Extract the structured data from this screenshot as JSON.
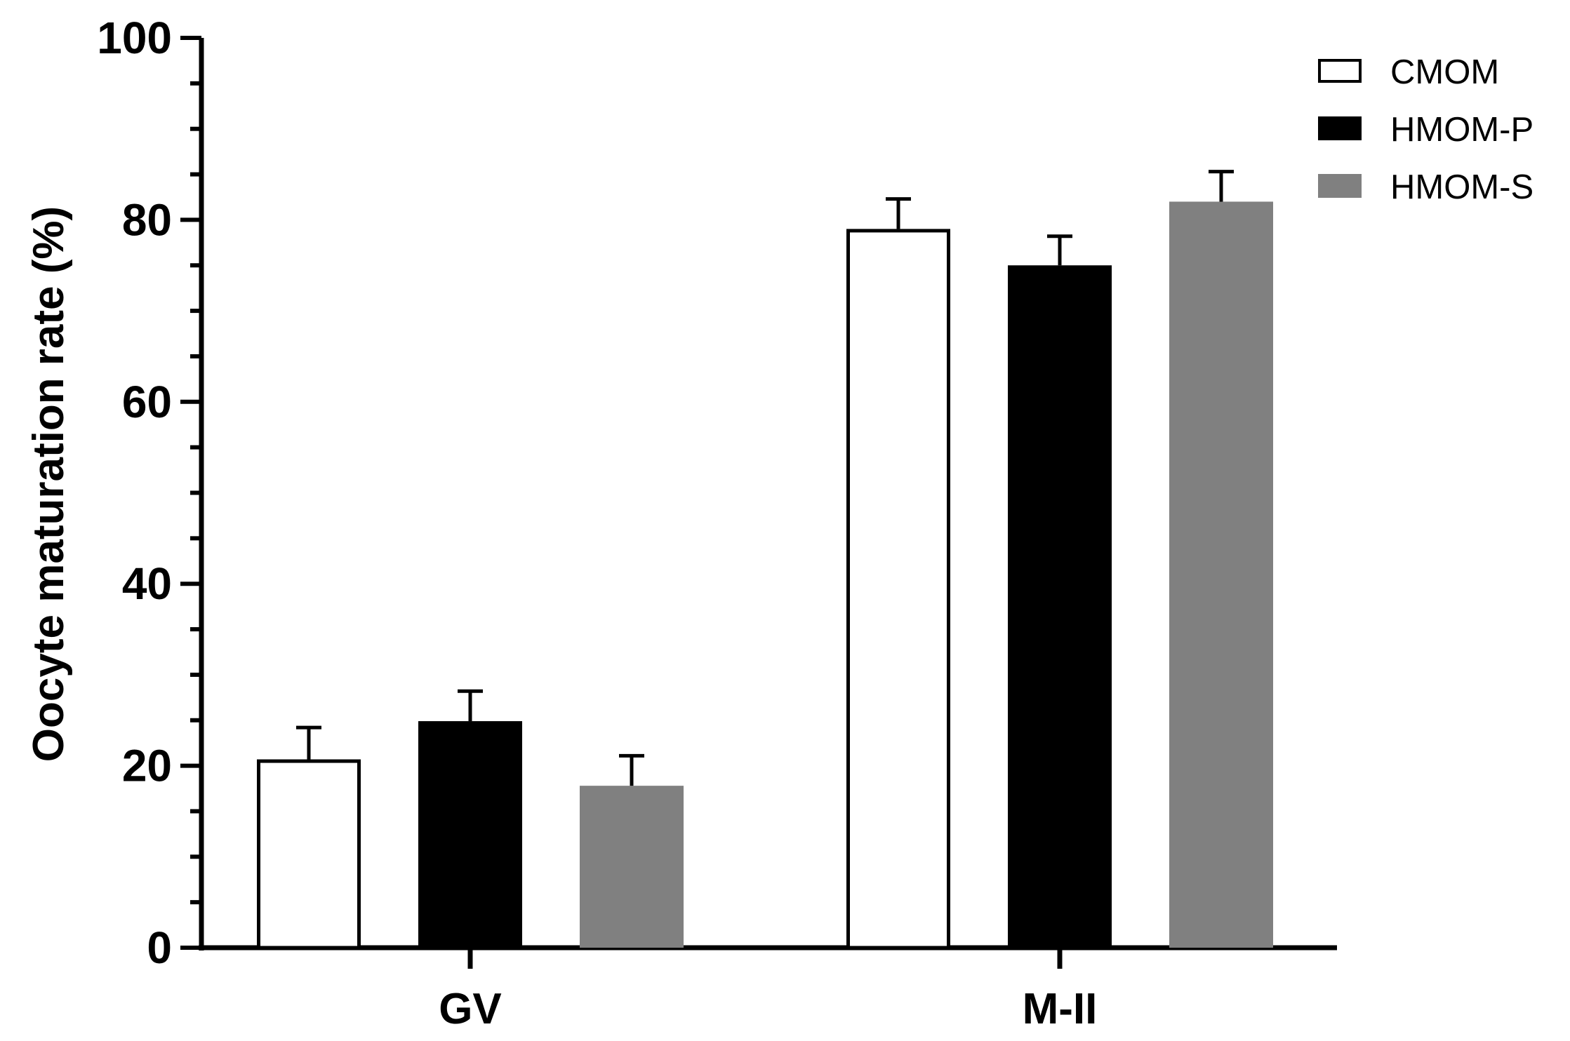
{
  "chart_data": {
    "type": "bar",
    "title": "",
    "xlabel": "",
    "ylabel": "Oocyte maturation rate (%)",
    "ylim": [
      0,
      100
    ],
    "yticks": [
      "0",
      "20",
      "40",
      "60",
      "80",
      "100"
    ],
    "categories": [
      "GV",
      "M-II"
    ],
    "series": [
      {
        "name": "CMOM",
        "values": [
          20.7,
          79.0
        ],
        "errors": [
          3.5,
          3.3
        ],
        "color": "#ffffff",
        "stroke": "#000000"
      },
      {
        "name": "HMOM-P",
        "values": [
          24.9,
          75.0
        ],
        "errors": [
          3.3,
          3.2
        ],
        "color": "#000000",
        "stroke": "#000000"
      },
      {
        "name": "HMOM-S",
        "values": [
          17.8,
          82.0
        ],
        "errors": [
          3.3,
          3.3
        ],
        "color": "#808080",
        "stroke": "#808080"
      }
    ],
    "error_bars": "upper",
    "grid": false,
    "legend_position": "top-right"
  }
}
